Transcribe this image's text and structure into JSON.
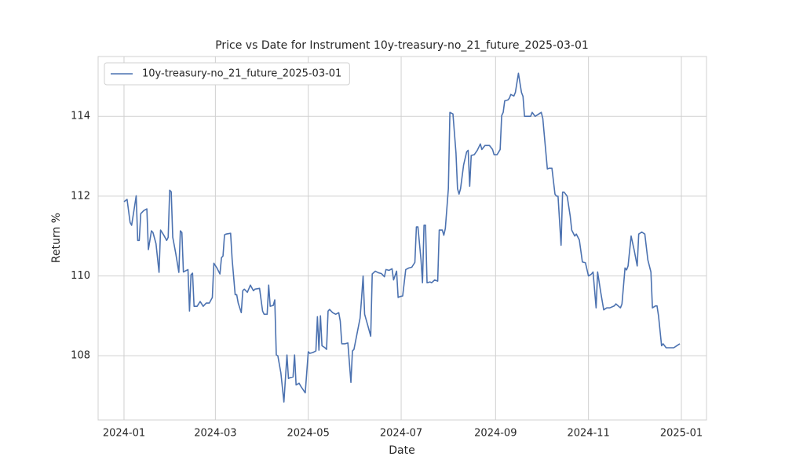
{
  "chart_data": {
    "type": "line",
    "title": "Price vs Date for Instrument 10y-treasury-no_21_future_2025-03-01",
    "x_label": "Date",
    "y_label": "Return %",
    "x": [
      0,
      2,
      4,
      5,
      7,
      8,
      9,
      10,
      11,
      13,
      15,
      16,
      18,
      19,
      21,
      23,
      24,
      26,
      28,
      29,
      30,
      31,
      32,
      34,
      36,
      37,
      38,
      39,
      41,
      42,
      43,
      44,
      45,
      46,
      48,
      50,
      52,
      54,
      56,
      58,
      59,
      61,
      63,
      64,
      65,
      66,
      67,
      70,
      71,
      73,
      74,
      75,
      77,
      78,
      79,
      81,
      83,
      85,
      86,
      89,
      91,
      92,
      94,
      95,
      96,
      98,
      99,
      100,
      101,
      103,
      105,
      107,
      108,
      109,
      111,
      112,
      113,
      115,
      116,
      119,
      121,
      122,
      124,
      126,
      127,
      128,
      129,
      130,
      132,
      133,
      134,
      135,
      137,
      139,
      141,
      142,
      143,
      145,
      147,
      149,
      150,
      151,
      155,
      156,
      157,
      158,
      160,
      162,
      163,
      165,
      167,
      169,
      171,
      172,
      174,
      176,
      177,
      179,
      180,
      181,
      183,
      185,
      187,
      189,
      191,
      192,
      193,
      195,
      196,
      197,
      198,
      199,
      201,
      202,
      204,
      206,
      207,
      209,
      210,
      211,
      213,
      214,
      216,
      218,
      219,
      220,
      221,
      223,
      225,
      226,
      227,
      228,
      230,
      232,
      234,
      235,
      237,
      240,
      242,
      243,
      245,
      247,
      248,
      249,
      250,
      252,
      253,
      254,
      256,
      257,
      259,
      261,
      262,
      263,
      265,
      267,
      268,
      270,
      272,
      274,
      275,
      278,
      279,
      281,
      283,
      284,
      285,
      287,
      288,
      289,
      291,
      293,
      294,
      296,
      297,
      299,
      301,
      303,
      305,
      307,
      308,
      310,
      311,
      313,
      315,
      317,
      319,
      322,
      323,
      326,
      327,
      329,
      330,
      331,
      333,
      335,
      337,
      338,
      340,
      342,
      344,
      346,
      347,
      349,
      350,
      351,
      353,
      354,
      356,
      359,
      361,
      363,
      365
    ],
    "series": [
      {
        "name": "10y-treasury-no_21_future_2025-03-01",
        "color": "#4c72b0",
        "values": [
          111.86,
          111.92,
          111.34,
          111.27,
          111.76,
          112.01,
          110.89,
          110.89,
          111.56,
          111.64,
          111.68,
          110.66,
          111.13,
          111.09,
          110.81,
          110.09,
          111.15,
          111.03,
          110.89,
          110.97,
          112.15,
          112.11,
          110.97,
          110.56,
          110.09,
          111.13,
          111.09,
          110.1,
          110.14,
          110.16,
          109.12,
          110.03,
          110.07,
          109.24,
          109.24,
          109.36,
          109.24,
          109.32,
          109.32,
          109.46,
          110.32,
          110.2,
          110.05,
          110.46,
          110.5,
          111.03,
          111.05,
          111.07,
          110.42,
          109.53,
          109.53,
          109.32,
          109.08,
          109.63,
          109.67,
          109.59,
          109.77,
          109.63,
          109.67,
          109.69,
          109.12,
          109.04,
          109.04,
          109.77,
          109.24,
          109.26,
          109.4,
          108.02,
          108.0,
          107.57,
          106.84,
          108.02,
          107.43,
          107.45,
          107.47,
          108.02,
          107.27,
          107.31,
          107.24,
          107.07,
          108.1,
          108.06,
          108.08,
          108.12,
          108.98,
          108.14,
          109.0,
          108.25,
          108.2,
          108.16,
          109.12,
          109.16,
          109.08,
          109.04,
          109.08,
          108.87,
          108.3,
          108.3,
          108.32,
          107.33,
          108.12,
          108.16,
          108.94,
          109.44,
          110.0,
          109.04,
          108.77,
          108.49,
          110.05,
          110.12,
          110.08,
          110.06,
          109.98,
          110.16,
          110.14,
          110.18,
          109.9,
          110.12,
          109.46,
          109.48,
          109.5,
          110.16,
          110.2,
          110.22,
          110.34,
          111.23,
          111.23,
          110.42,
          109.83,
          111.27,
          111.27,
          109.83,
          109.85,
          109.83,
          109.9,
          109.87,
          111.15,
          111.15,
          111.02,
          111.19,
          112.19,
          114.1,
          114.06,
          113.08,
          112.19,
          112.05,
          112.19,
          112.78,
          113.11,
          113.15,
          112.25,
          113.02,
          113.04,
          113.15,
          113.31,
          113.17,
          113.27,
          113.27,
          113.17,
          113.04,
          113.04,
          113.17,
          114.02,
          114.1,
          114.39,
          114.41,
          114.45,
          114.55,
          114.51,
          114.6,
          115.08,
          114.6,
          114.5,
          114.0,
          114.0,
          114.0,
          114.1,
          114.0,
          114.05,
          114.1,
          113.95,
          112.68,
          112.7,
          112.7,
          112.05,
          112.0,
          112.0,
          110.77,
          112.1,
          112.1,
          112.0,
          111.5,
          111.15,
          111.0,
          111.05,
          110.9,
          110.35,
          110.33,
          110.0,
          110.05,
          110.1,
          109.2,
          110.1,
          109.6,
          109.15,
          109.2,
          109.2,
          109.25,
          109.3,
          109.2,
          109.3,
          110.2,
          110.15,
          110.25,
          111.0,
          110.65,
          110.25,
          111.05,
          111.1,
          111.05,
          110.4,
          110.1,
          109.2,
          109.25,
          109.25,
          109.0,
          108.25,
          108.3,
          108.2,
          108.2,
          108.2,
          108.25,
          108.3
        ]
      }
    ],
    "xlim": [
      -17,
      382.5
    ],
    "xticks": [
      {
        "value": 0,
        "label": "2024-01"
      },
      {
        "value": 60,
        "label": "2024-03"
      },
      {
        "value": 121,
        "label": "2024-05"
      },
      {
        "value": 182,
        "label": "2024-07"
      },
      {
        "value": 244,
        "label": "2024-09"
      },
      {
        "value": 305,
        "label": "2024-11"
      },
      {
        "value": 366,
        "label": "2025-01"
      }
    ],
    "ylim": [
      106.39,
      115.5
    ],
    "yticks": [
      108,
      110,
      112,
      114
    ],
    "grid": true,
    "legend": "upper-left"
  }
}
